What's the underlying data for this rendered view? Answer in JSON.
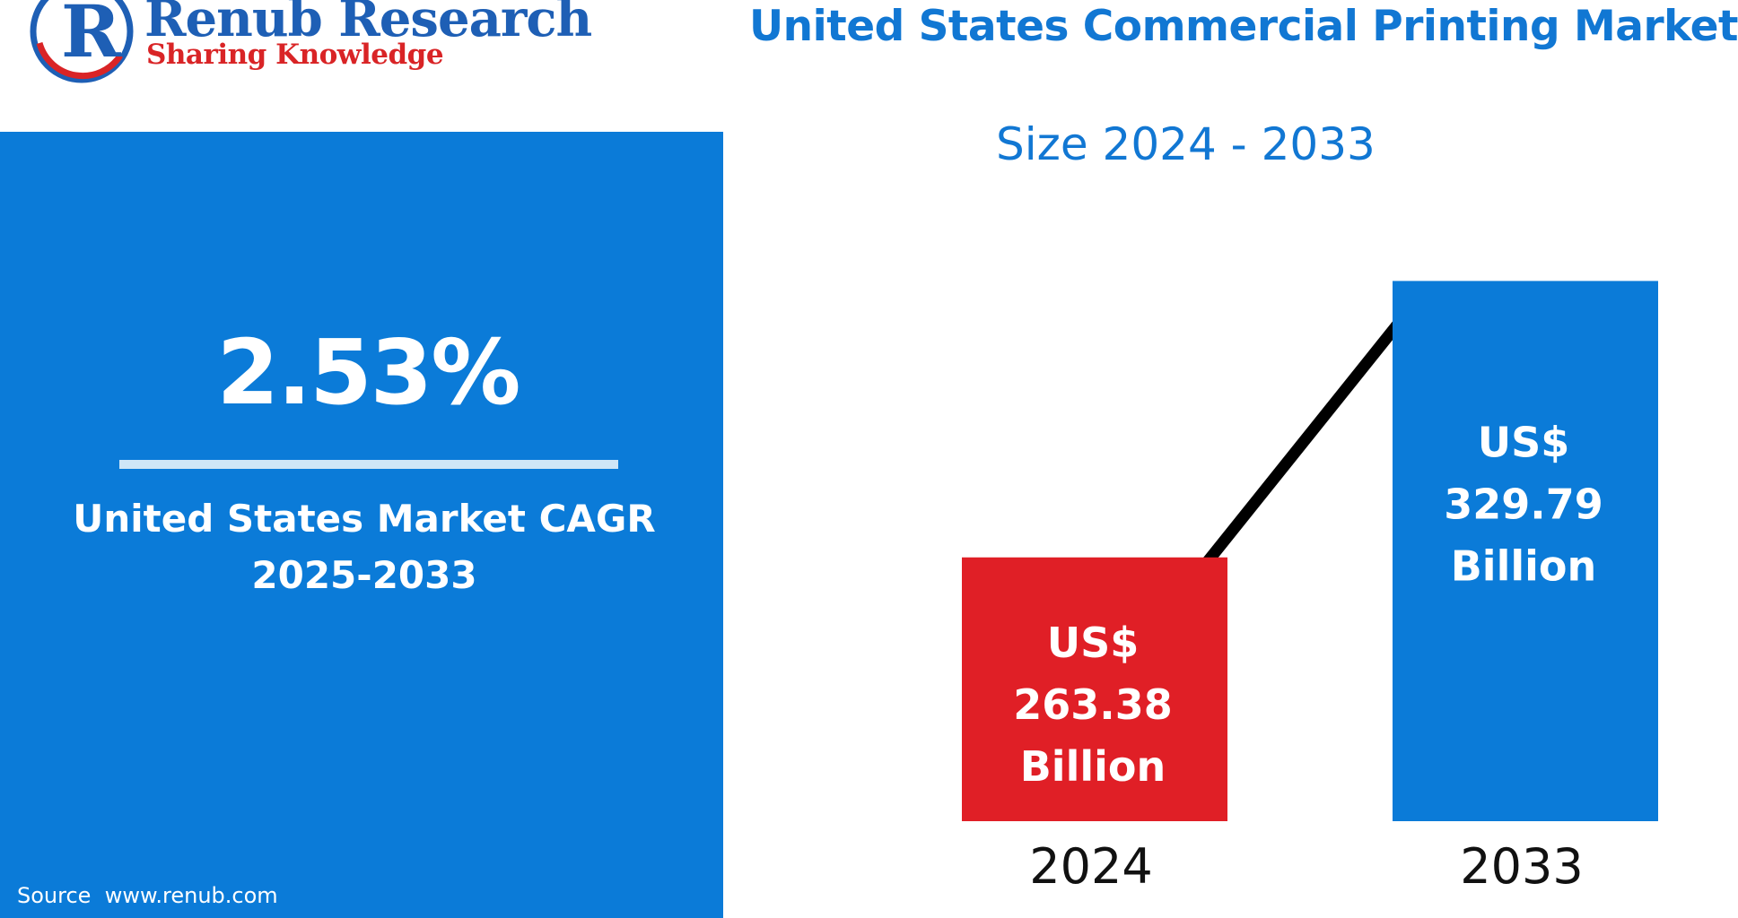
{
  "brand": {
    "name": "Renub Research",
    "tagline": "Sharing Knowledge",
    "logo_letter": "R",
    "colors": {
      "blue": "#1e5fb5",
      "red": "#d92426"
    }
  },
  "header": {
    "title": "United States Commercial Printing Market",
    "subtitle": "Size 2024 - 2033"
  },
  "kpi": {
    "value": "2.53%",
    "label_line1": "United States Market CAGR",
    "label_line2": "2025-2033",
    "background_color": "#0b7bd8"
  },
  "source": {
    "text": "Source  www.renub.com"
  },
  "chart_data": {
    "type": "bar",
    "title": "United States Commercial Printing Market Size 2024 - 2033",
    "categories": [
      "2024",
      "2033"
    ],
    "values": [
      263.38,
      329.79
    ],
    "unit": "US$ Billion",
    "value_labels": [
      [
        "US$",
        "263.38",
        "Billion"
      ],
      [
        "US$",
        "329.79",
        "Billion"
      ]
    ],
    "colors": [
      "#e01f26",
      "#0b7bd8"
    ],
    "trend_line": true,
    "trend_line_color": "#000000",
    "ylim": [
      200,
      340
    ],
    "xlabel": "",
    "ylabel": ""
  }
}
